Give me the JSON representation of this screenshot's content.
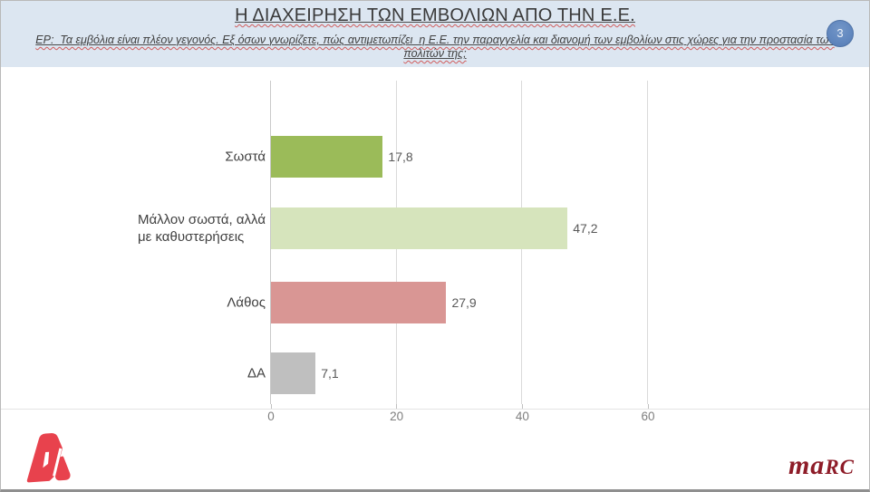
{
  "page": {
    "number": "3"
  },
  "header": {
    "title": "Η ΔΙΑΧΕΙΡΗΣΗ ΤΩΝ ΕΜΒΟΛΙΩΝ ΑΠΟ ΤΗΝ Ε.Ε.",
    "subtitle_lines": [
      "ΕΡ:  Τα εμβόλια είναι πλέον γεγονός. Εξ όσων γνωρίζετε, πώς αντιμετωπίζει  η Ε.Ε. την παραγγελία και διανομή των εμβολίων στις χώρες για την προστασία των",
      "πολιτών της;"
    ]
  },
  "chart_data": {
    "type": "bar",
    "orientation": "horizontal",
    "categories": [
      "Σωστά",
      "Μάλλον σωστά, αλλά\nμε καθυστερήσεις",
      "Λάθος",
      "ΔΑ"
    ],
    "values": [
      17.8,
      47.2,
      27.9,
      7.1
    ],
    "value_labels": [
      "17,8",
      "47,2",
      "27,9",
      "7,1"
    ],
    "bar_colors": [
      "#9bbb59",
      "#d6e4bc",
      "#d99694",
      "#bfbfbf"
    ],
    "title": "",
    "xlabel": "",
    "ylabel": "",
    "xlim": [
      0,
      60
    ],
    "x_ticks": [
      0,
      20,
      40,
      60
    ],
    "x_tick_labels": [
      "0",
      "20",
      "40",
      "60"
    ],
    "grid": true,
    "legend": false
  },
  "footer": {
    "alpha_logo_name": "alpha-tv-logo",
    "alpha_color": "#e8424d",
    "marc_part1": "ma",
    "marc_part2": "RC"
  }
}
